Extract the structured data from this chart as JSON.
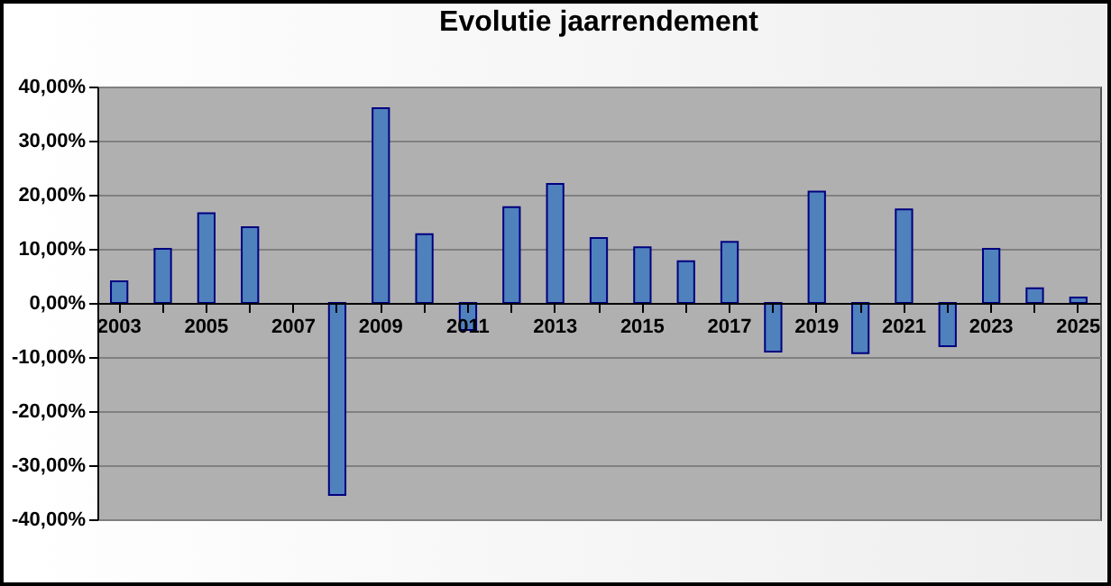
{
  "chart_data": {
    "type": "bar",
    "title": "Evolutie jaarrendement",
    "categories": [
      "2003",
      null,
      "2005",
      null,
      "2007",
      null,
      "2009",
      null,
      "2011",
      null,
      "2013",
      null,
      "2015",
      null,
      "2017",
      null,
      "2019",
      null,
      "2021",
      null,
      "2023",
      null,
      "2025"
    ],
    "values": [
      4,
      10,
      16.6,
      14,
      null,
      -35.5,
      36,
      12.7,
      -5,
      17.7,
      22,
      12,
      10.3,
      7.7,
      11.3,
      -9,
      20.6,
      -9.3,
      17.3,
      -8,
      10,
      2.7,
      1
    ],
    "color": "#4f81bd",
    "ylim": [
      -40,
      40
    ],
    "yticks": [
      {
        "value": -40,
        "label": "-40,00%"
      },
      {
        "value": -30,
        "label": "-30,00%"
      },
      {
        "value": -20,
        "label": "-20,00%"
      },
      {
        "value": -10,
        "label": "-10,00%"
      },
      {
        "value": 0,
        "label": "0,00%"
      },
      {
        "value": 10,
        "label": "10,00%"
      },
      {
        "value": 20,
        "label": "20,00%"
      },
      {
        "value": 30,
        "label": "30,00%"
      },
      {
        "value": 40,
        "label": "40,00%"
      }
    ],
    "grid": "y"
  }
}
